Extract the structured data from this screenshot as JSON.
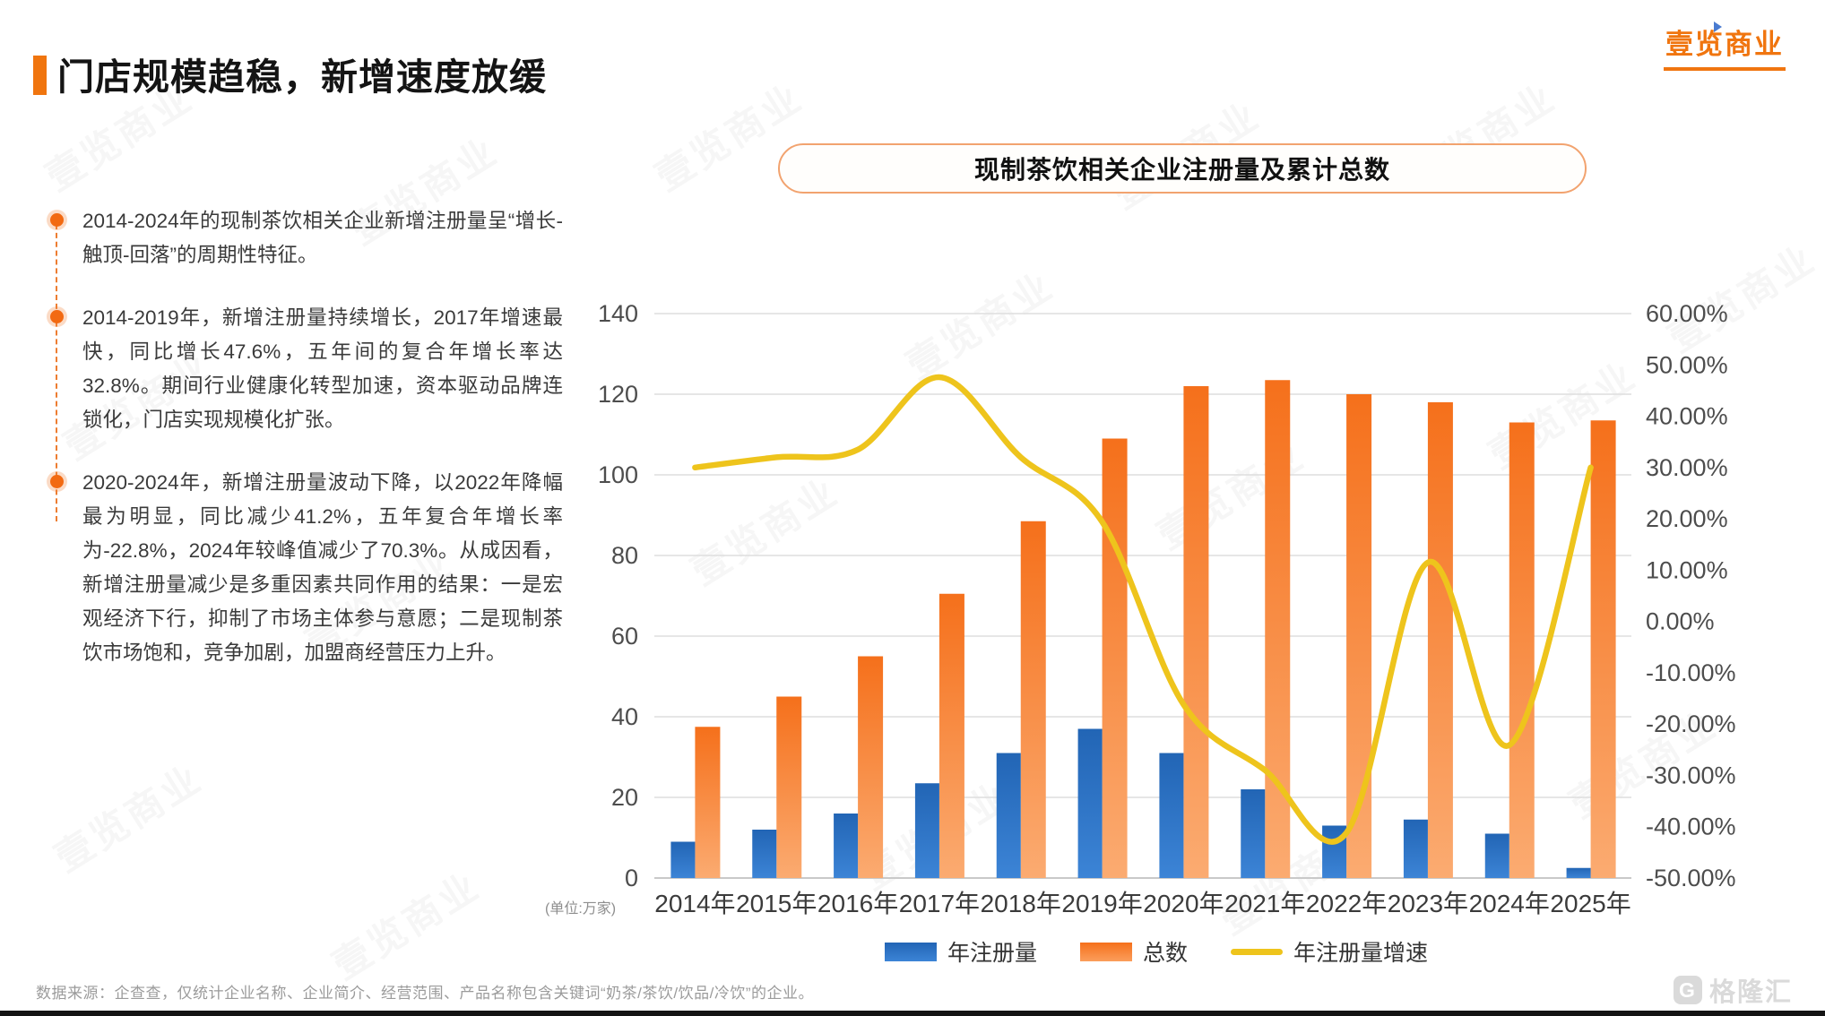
{
  "page": {
    "title": "门店规模趋稳，新增速度放缓"
  },
  "brand": {
    "name": "壹览商业",
    "footer_logo": "格隆汇",
    "footer_logo_icon": "G"
  },
  "bullets": [
    "2014-2024年的现制茶饮相关企业新增注册量呈“增长-触顶-回落”的周期性特征。",
    "2014-2019年，新增注册量持续增长，2017年增速最快，同比增长47.6%，五年间的复合年增长率达32.8%。期间行业健康化转型加速，资本驱动品牌连锁化，门店实现规模化扩张。",
    "2020-2024年，新增注册量波动下降，以2022年降幅最为明显，同比减少41.2%，五年复合年增长率为-22.8%，2024年较峰值减少了70.3%。从成因看，新增注册量减少是多重因素共同作用的结果：一是宏观经济下行，抑制了市场主体参与意愿；二是现制茶饮市场饱和，竞争加剧，加盟商经营压力上升。"
  ],
  "chart": {
    "title": "现制茶饮相关企业注册量及累计总数",
    "unit_note": "(单位:万家)",
    "colors": {
      "annual_top": "#2265B5",
      "annual_bottom": "#3C84D6",
      "total_top": "#F5701B",
      "total_bottom": "#FBAB71",
      "growth_line": "#EEC41C",
      "grid": "#DDDDDD",
      "axis_line": "#C9C9C9",
      "axis_text": "#4D4D4D",
      "year_text": "#3B3B3B",
      "accent": "#F0750F"
    }
  },
  "chart_data": {
    "type": "bar+line",
    "title": "现制茶饮相关企业注册量及累计总数",
    "categories": [
      "2014年",
      "2015年",
      "2016年",
      "2017年",
      "2018年",
      "2019年",
      "2020年",
      "2021年",
      "2022年",
      "2023年",
      "2024年",
      "2025年"
    ],
    "series": [
      {
        "name": "年注册量",
        "type": "bar",
        "axis": "left",
        "values": [
          9,
          12,
          16,
          23.5,
          31,
          37,
          31,
          22,
          13,
          14.5,
          11,
          2.5
        ]
      },
      {
        "name": "总数",
        "type": "bar",
        "axis": "left",
        "values": [
          37.5,
          45,
          55,
          70.5,
          88.5,
          109,
          122,
          123.5,
          120,
          118,
          113,
          113.5
        ]
      },
      {
        "name": "年注册量增速",
        "type": "line",
        "axis": "right",
        "values": [
          0.3,
          0.32,
          0.335,
          0.476,
          0.32,
          0.194,
          -0.162,
          -0.29,
          -0.412,
          0.115,
          -0.241,
          0.3
        ]
      }
    ],
    "left_axis": {
      "min": 0,
      "max": 140,
      "step": 20,
      "unit": "万家"
    },
    "right_axis": {
      "min": -0.5,
      "max": 0.6,
      "step": 0.1,
      "format": "percent"
    },
    "grid": true,
    "legend_position": "bottom"
  },
  "footer": {
    "source": "数据来源：企查查，仅统计企业名称、企业简介、经营范围、产品名称包含关键词“奶茶/茶饮/饮品/冷饮”的企业。"
  }
}
